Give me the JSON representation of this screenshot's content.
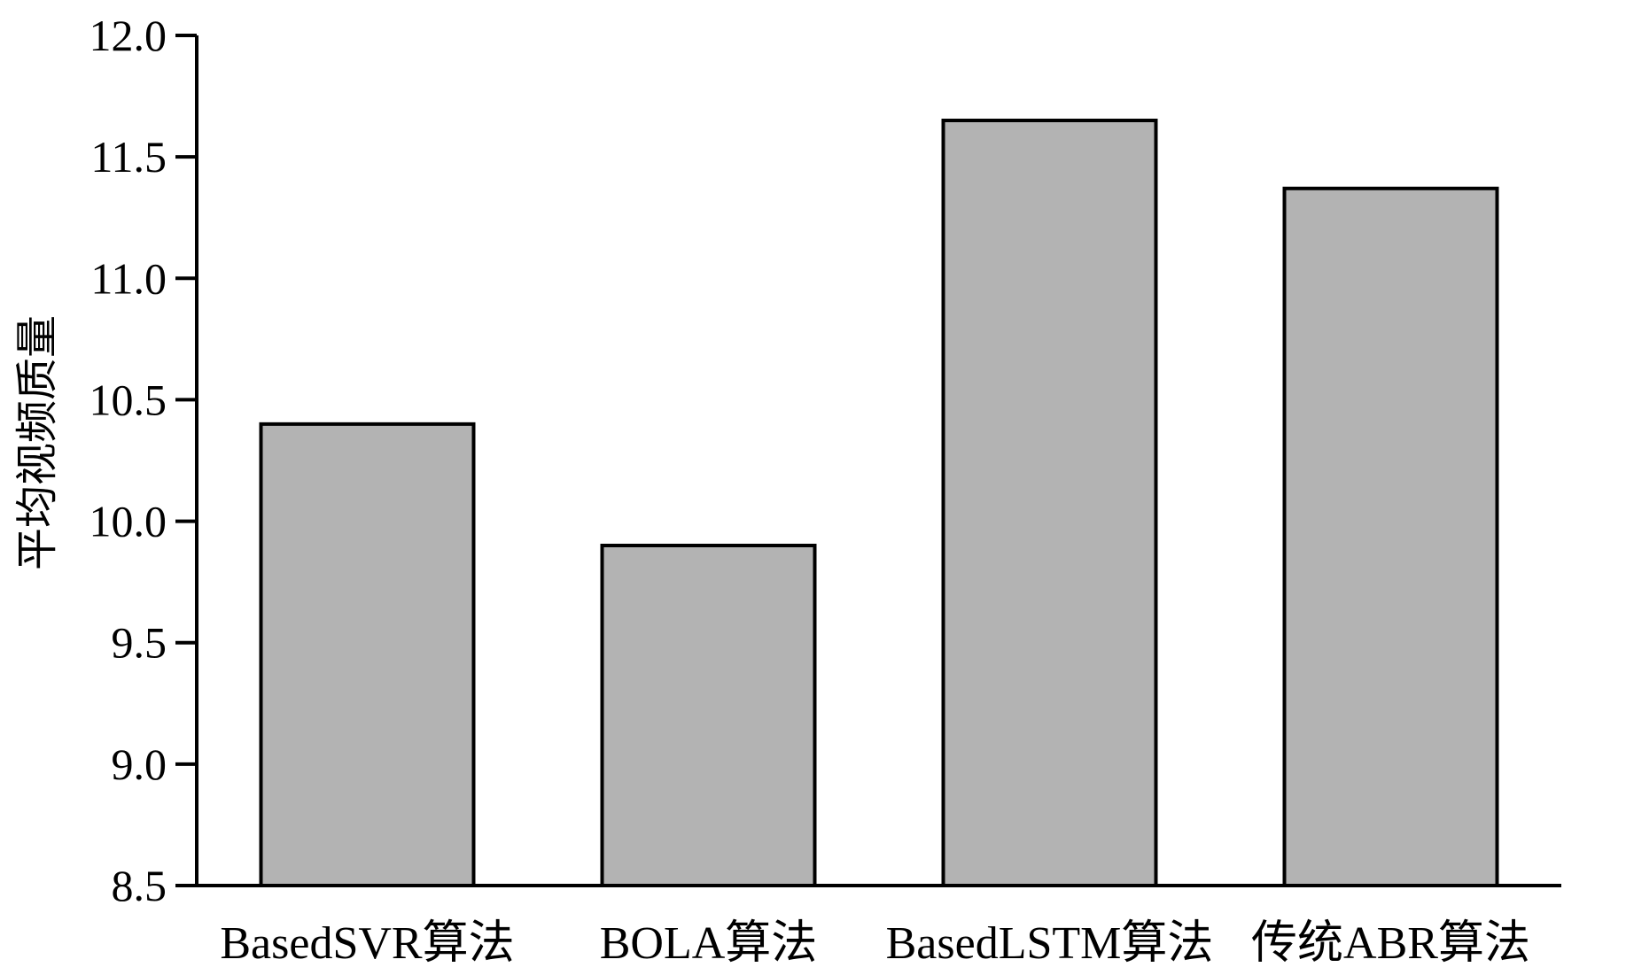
{
  "chart_data": {
    "type": "bar",
    "title": "",
    "xlabel": "",
    "ylabel": "平均视频质量",
    "categories": [
      "BasedSVR算法",
      "BOLA算法",
      "BasedLSTM算法",
      "传统ABR算法"
    ],
    "values": [
      10.4,
      9.9,
      11.65,
      11.37
    ],
    "ylim": [
      8.5,
      12.0
    ],
    "yticks": [
      "8.5",
      "9.0",
      "9.5",
      "10.0",
      "10.5",
      "11.0",
      "11.5",
      "12.0"
    ],
    "grid": false,
    "legend": "none",
    "colors": {
      "bar_fill": "#b3b3b3",
      "bar_stroke": "#000000",
      "axis": "#000000"
    }
  }
}
